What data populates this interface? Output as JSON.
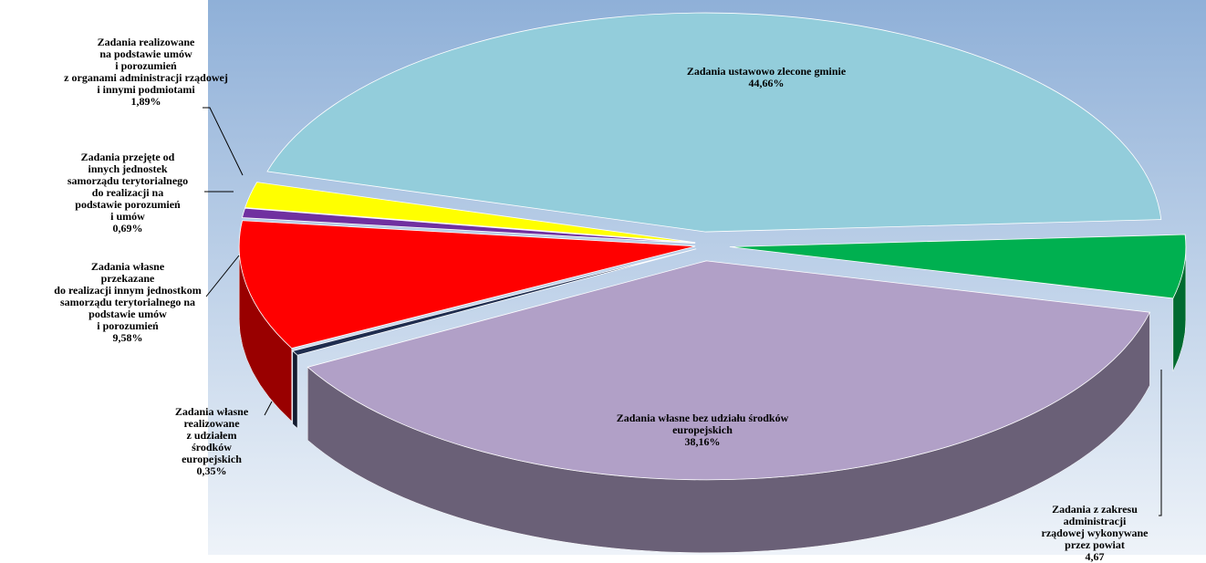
{
  "chart_data": {
    "type": "pie3d",
    "categories": [
      "Zadania ustawowo zlecone gminie",
      "Zadania z zakresu administracji\nrządowej wykonywane przez powiat",
      "Zadania własne bez udziału środków\neuropejskich",
      "Zadania własne\nrealizowane\nz udziałem\nśrodków\neuropejskich",
      "Zadania własne\nprzekazane\ndo realizacji innym jednostkom\nsamorządu terytorialnego na\npodstawie umów\ni porozumień",
      "Zadania przejęte od\ninnych jednostek\nsamorządu terytorialnego\ndo realizacji na\npodstawie porozumień\ni umów",
      "Zadania realizowane\nna podstawie umów\ni porozumień\nz organami administracji rządowej\ni innymi podmiotami"
    ],
    "values": [
      44.66,
      4.67,
      38.16,
      0.35,
      9.58,
      0.69,
      1.89
    ],
    "value_labels": [
      "44,66%",
      "4,67",
      "38,16%",
      "0,35%",
      "9,58%",
      "0,69%",
      "1,89%"
    ],
    "colors": [
      "#93cddb",
      "#00b050",
      "#b1a0c7",
      "#1f2d4f",
      "#ff0000",
      "#7030a0",
      "#ffff00"
    ]
  }
}
